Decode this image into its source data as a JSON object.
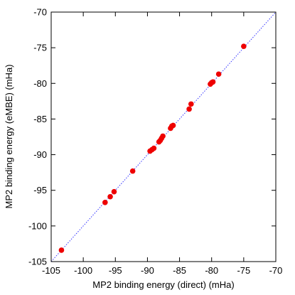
{
  "chart_data": {
    "type": "scatter",
    "title": "",
    "xlabel": "MP2 binding energy (direct) (mHa)",
    "ylabel": "MP2 binding energy (eMBE) (mHa)",
    "xlim": [
      -105,
      -70
    ],
    "ylim": [
      -105,
      -70
    ],
    "x_ticks": [
      -105,
      -100,
      -95,
      -90,
      -85,
      -80,
      -75,
      -70
    ],
    "y_ticks": [
      -105,
      -100,
      -95,
      -90,
      -85,
      -80,
      -75,
      -70
    ],
    "x_tick_labels": [
      "-105",
      "-100",
      "-95",
      "-90",
      "-85",
      "-80",
      "-75",
      "-70"
    ],
    "y_tick_labels": [
      "-105",
      "-100",
      "-95",
      "-90",
      "-85",
      "-80",
      "-75",
      "-70"
    ],
    "grid": false,
    "reference_line": {
      "type": "y=x",
      "style": "dotted",
      "color": "#3333ff"
    },
    "series": [
      {
        "marker_color": "#ee0000",
        "points": [
          {
            "x": -103.4,
            "y": -103.4
          },
          {
            "x": -96.6,
            "y": -96.7
          },
          {
            "x": -95.8,
            "y": -95.9
          },
          {
            "x": -95.2,
            "y": -95.2
          },
          {
            "x": -92.3,
            "y": -92.3
          },
          {
            "x": -89.6,
            "y": -89.5
          },
          {
            "x": -89.3,
            "y": -89.3
          },
          {
            "x": -89.0,
            "y": -89.1
          },
          {
            "x": -88.2,
            "y": -88.2
          },
          {
            "x": -88.0,
            "y": -88.0
          },
          {
            "x": -87.8,
            "y": -87.7
          },
          {
            "x": -87.6,
            "y": -87.4
          },
          {
            "x": -86.4,
            "y": -86.3
          },
          {
            "x": -86.2,
            "y": -86.0
          },
          {
            "x": -86.0,
            "y": -85.9
          },
          {
            "x": -83.5,
            "y": -83.6
          },
          {
            "x": -83.2,
            "y": -82.9
          },
          {
            "x": -80.2,
            "y": -80.1
          },
          {
            "x": -80.0,
            "y": -79.9
          },
          {
            "x": -79.8,
            "y": -79.8
          },
          {
            "x": -78.9,
            "y": -78.7
          },
          {
            "x": -75.0,
            "y": -74.8
          }
        ]
      }
    ]
  }
}
